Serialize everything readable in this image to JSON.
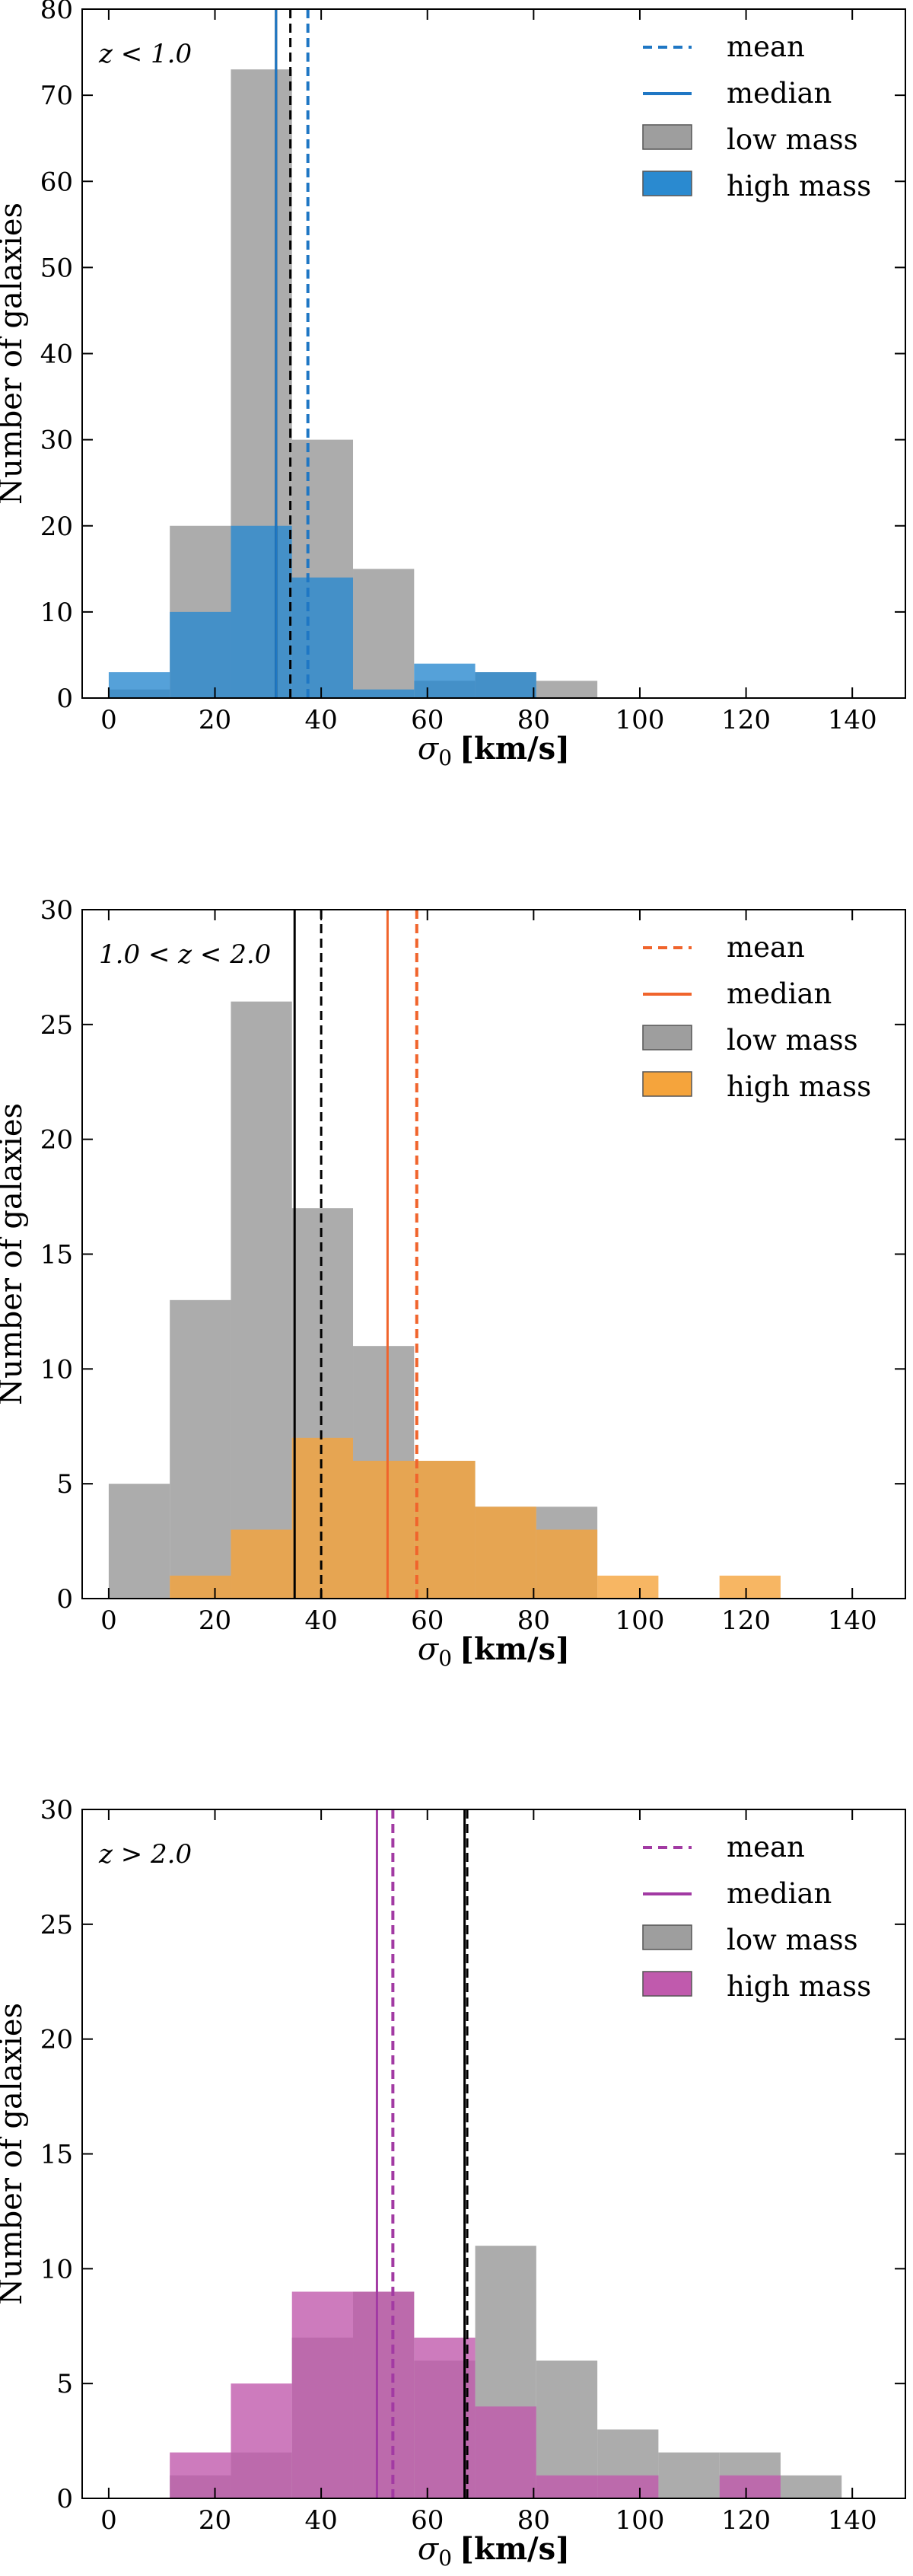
{
  "figure": {
    "ylabel": "Number of galaxies",
    "xlabel_symbol": "σ",
    "xlabel_subscript": "0",
    "xlabel_units": "[km/s]"
  },
  "chart_data": [
    {
      "type": "bar",
      "subtype": "histogram",
      "panel": "top",
      "redshift_label": "z < 1.0",
      "xlabel": "σ0 [km/s]",
      "ylabel": "Number of galaxies",
      "xlim": [
        -5,
        150
      ],
      "ylim": [
        0,
        80
      ],
      "xticks": [
        0,
        20,
        40,
        60,
        80,
        100,
        120,
        140
      ],
      "yticks": [
        0,
        10,
        20,
        30,
        40,
        50,
        60,
        70,
        80
      ],
      "accent_color": "#1f77c4",
      "low_mass": {
        "name": "low mass",
        "color": "#9e9e9e",
        "edges": [
          0,
          11.5,
          23,
          34.5,
          46,
          57.5,
          69,
          80.5,
          92
        ],
        "counts": [
          1,
          20,
          73,
          30,
          15,
          2,
          3,
          2
        ]
      },
      "high_mass": {
        "name": "high mass",
        "color": "#2a8ad0",
        "edges": [
          0,
          11.5,
          23,
          34.5,
          46,
          57.5,
          69,
          80.5
        ],
        "counts": [
          3,
          10,
          20,
          14,
          1,
          4,
          3
        ]
      },
      "lines": {
        "low_mean": 34.2,
        "low_median": 31.5,
        "high_mean": 37.5,
        "high_median": 31.5
      },
      "legend": [
        "mean",
        "median",
        "low mass",
        "high mass"
      ],
      "legend_position": "top-right"
    },
    {
      "type": "bar",
      "subtype": "histogram",
      "panel": "middle",
      "redshift_label": "1.0 < z < 2.0",
      "xlabel": "σ0 [km/s]",
      "ylabel": "Number of galaxies",
      "xlim": [
        -5,
        150
      ],
      "ylim": [
        0,
        30
      ],
      "xticks": [
        0,
        20,
        40,
        60,
        80,
        100,
        120,
        140
      ],
      "yticks": [
        0,
        5,
        10,
        15,
        20,
        25,
        30
      ],
      "accent_color": "#f0642c",
      "low_mass": {
        "name": "low mass",
        "color": "#9e9e9e",
        "edges": [
          0,
          11.5,
          23,
          34.5,
          46,
          57.5,
          69,
          80.5,
          92
        ],
        "counts": [
          5,
          13,
          26,
          17,
          11,
          6,
          4,
          4
        ]
      },
      "high_mass": {
        "name": "high mass",
        "color": "#f5a43c",
        "edges": [
          11.5,
          23,
          34.5,
          46,
          57.5,
          69,
          80.5,
          92,
          103.5,
          115,
          126.5
        ],
        "counts": [
          1,
          3,
          7,
          6,
          6,
          4,
          3,
          1,
          0,
          1
        ]
      },
      "lines": {
        "low_mean": 40,
        "low_median": 35,
        "high_mean": 58,
        "high_median": 52.5
      },
      "legend": [
        "mean",
        "median",
        "low mass",
        "high mass"
      ],
      "legend_position": "top-right"
    },
    {
      "type": "bar",
      "subtype": "histogram",
      "panel": "bottom",
      "redshift_label": "z > 2.0",
      "xlabel": "σ0 [km/s]",
      "ylabel": "Number of galaxies",
      "xlim": [
        -5,
        150
      ],
      "ylim": [
        0,
        30
      ],
      "xticks": [
        0,
        20,
        40,
        60,
        80,
        100,
        120,
        140
      ],
      "yticks": [
        0,
        5,
        10,
        15,
        20,
        25,
        30
      ],
      "accent_color": "#a23aa3",
      "low_mass": {
        "name": "low mass",
        "color": "#9e9e9e",
        "edges": [
          11.5,
          23,
          34.5,
          46,
          57.5,
          69,
          80.5,
          92,
          103.5,
          115,
          126.5,
          138
        ],
        "counts": [
          1,
          2,
          7,
          9,
          6,
          11,
          6,
          3,
          2,
          2,
          1
        ]
      },
      "high_mass": {
        "name": "high mass",
        "color": "#c05aad",
        "edges": [
          11.5,
          23,
          34.5,
          46,
          57.5,
          69,
          80.5,
          92,
          103.5,
          115,
          126.5
        ],
        "counts": [
          2,
          5,
          9,
          9,
          7,
          4,
          1,
          1,
          0,
          1
        ]
      },
      "lines": {
        "low_mean": 67.5,
        "low_median": 67,
        "high_mean": 53.5,
        "high_median": 50.5
      },
      "legend": [
        "mean",
        "median",
        "low mass",
        "high mass"
      ],
      "legend_position": "top-right"
    }
  ]
}
